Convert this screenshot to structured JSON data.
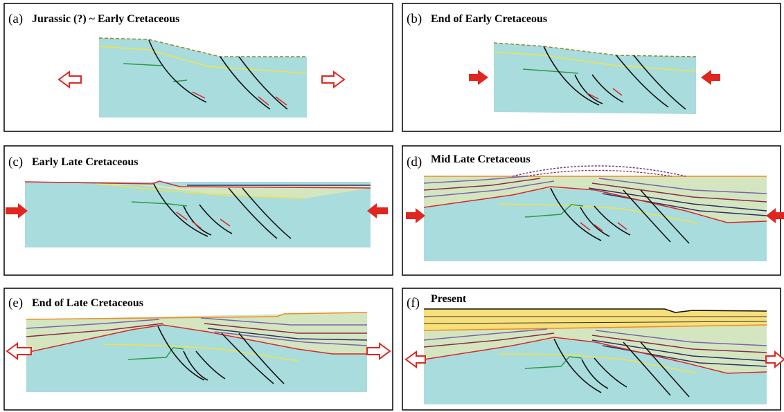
{
  "panels": [
    {
      "letter": "(a)",
      "title": "Jurassic (?) ~ Early Cretaceous"
    },
    {
      "letter": "(b)",
      "title": "End of Early Cretaceous"
    },
    {
      "letter": "(c)",
      "title": "Early Late Cretaceous"
    },
    {
      "letter": "(d)",
      "title": "Mid Late Cretaceous"
    },
    {
      "letter": "(e)",
      "title": "End of Late Cretaceous"
    },
    {
      "letter": "(f)",
      "title": "Present"
    }
  ]
}
